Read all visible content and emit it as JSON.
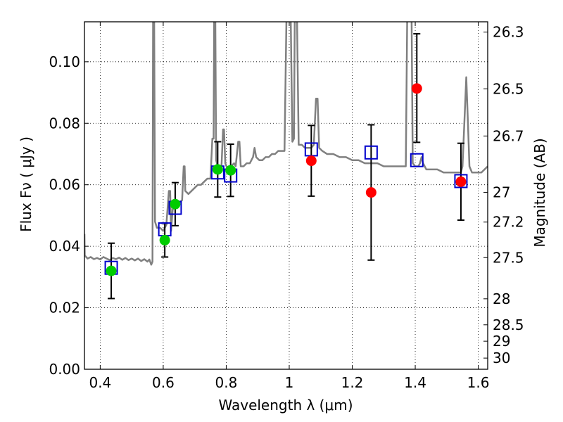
{
  "chart_data": {
    "type": "scatter",
    "title": "",
    "xlabel": "Wavelength  λ (μm)",
    "ylabel": "Flux  Fν  ( μJy )",
    "ylabel_right": "Magnitude (AB)",
    "xlim": [
      0.35,
      1.63
    ],
    "ylim": [
      0.0,
      0.113
    ],
    "grid": true,
    "x_ticks": [
      {
        "value": 0.4,
        "label": "0.4"
      },
      {
        "value": 0.6,
        "label": "0.6"
      },
      {
        "value": 0.8,
        "label": "0.8"
      },
      {
        "value": 1.0,
        "label": "1"
      },
      {
        "value": 1.2,
        "label": "1.2"
      },
      {
        "value": 1.4,
        "label": "1.4"
      },
      {
        "value": 1.6,
        "label": "1.6"
      }
    ],
    "y_ticks": [
      {
        "value": 0.0,
        "label": "0.00"
      },
      {
        "value": 0.02,
        "label": "0.02"
      },
      {
        "value": 0.04,
        "label": "0.04"
      },
      {
        "value": 0.06,
        "label": "0.06"
      },
      {
        "value": 0.08,
        "label": "0.08"
      },
      {
        "value": 0.1,
        "label": "0.10"
      }
    ],
    "right_ticks": [
      {
        "value": 26.3,
        "label": "26.3"
      },
      {
        "value": 26.5,
        "label": "26.5"
      },
      {
        "value": 26.7,
        "label": "26.7"
      },
      {
        "value": 27.0,
        "label": "27"
      },
      {
        "value": 27.2,
        "label": "27.2"
      },
      {
        "value": 27.5,
        "label": "27.5"
      },
      {
        "value": 28.0,
        "label": "28"
      },
      {
        "value": 28.5,
        "label": "28.5"
      },
      {
        "value": 29.0,
        "label": "29"
      },
      {
        "value": 30.0,
        "label": "30"
      }
    ],
    "spectrum": {
      "color": "#808080",
      "points": [
        [
          0.35,
          0.044
        ],
        [
          0.351,
          0.037
        ],
        [
          0.36,
          0.036
        ],
        [
          0.37,
          0.0365
        ],
        [
          0.38,
          0.0358
        ],
        [
          0.39,
          0.0362
        ],
        [
          0.4,
          0.0357
        ],
        [
          0.41,
          0.0365
        ],
        [
          0.42,
          0.036
        ],
        [
          0.43,
          0.0355
        ],
        [
          0.44,
          0.0362
        ],
        [
          0.45,
          0.0358
        ],
        [
          0.46,
          0.0363
        ],
        [
          0.47,
          0.0356
        ],
        [
          0.48,
          0.0362
        ],
        [
          0.49,
          0.0355
        ],
        [
          0.5,
          0.036
        ],
        [
          0.51,
          0.0354
        ],
        [
          0.52,
          0.036
        ],
        [
          0.53,
          0.0352
        ],
        [
          0.54,
          0.0358
        ],
        [
          0.55,
          0.035
        ],
        [
          0.556,
          0.0357
        ],
        [
          0.562,
          0.034
        ],
        [
          0.566,
          0.035
        ],
        [
          0.568,
          0.12
        ],
        [
          0.571,
          0.12
        ],
        [
          0.574,
          0.048
        ],
        [
          0.58,
          0.046
        ],
        [
          0.59,
          0.046
        ],
        [
          0.6,
          0.045
        ],
        [
          0.61,
          0.047
        ],
        [
          0.618,
          0.058
        ],
        [
          0.622,
          0.058
        ],
        [
          0.625,
          0.045
        ],
        [
          0.63,
          0.052
        ],
        [
          0.64,
          0.053
        ],
        [
          0.65,
          0.054
        ],
        [
          0.66,
          0.055
        ],
        [
          0.665,
          0.066
        ],
        [
          0.668,
          0.066
        ],
        [
          0.67,
          0.058
        ],
        [
          0.68,
          0.057
        ],
        [
          0.69,
          0.058
        ],
        [
          0.7,
          0.059
        ],
        [
          0.71,
          0.06
        ],
        [
          0.72,
          0.06
        ],
        [
          0.73,
          0.061
        ],
        [
          0.74,
          0.062
        ],
        [
          0.75,
          0.062
        ],
        [
          0.756,
          0.075
        ],
        [
          0.76,
          0.075
        ],
        [
          0.762,
          0.12
        ],
        [
          0.765,
          0.12
        ],
        [
          0.768,
          0.068
        ],
        [
          0.775,
          0.065
        ],
        [
          0.785,
          0.066
        ],
        [
          0.79,
          0.078
        ],
        [
          0.793,
          0.078
        ],
        [
          0.797,
          0.067
        ],
        [
          0.805,
          0.065
        ],
        [
          0.815,
          0.066
        ],
        [
          0.825,
          0.067
        ],
        [
          0.83,
          0.066
        ],
        [
          0.838,
          0.074
        ],
        [
          0.842,
          0.074
        ],
        [
          0.846,
          0.066
        ],
        [
          0.855,
          0.066
        ],
        [
          0.865,
          0.067
        ],
        [
          0.875,
          0.067
        ],
        [
          0.885,
          0.069
        ],
        [
          0.89,
          0.072
        ],
        [
          0.895,
          0.069
        ],
        [
          0.905,
          0.068
        ],
        [
          0.915,
          0.068
        ],
        [
          0.925,
          0.069
        ],
        [
          0.935,
          0.069
        ],
        [
          0.945,
          0.07
        ],
        [
          0.955,
          0.07
        ],
        [
          0.965,
          0.071
        ],
        [
          0.975,
          0.071
        ],
        [
          0.985,
          0.071
        ],
        [
          0.992,
          0.12
        ],
        [
          1.004,
          0.12
        ],
        [
          1.01,
          0.074
        ],
        [
          1.015,
          0.075
        ],
        [
          1.018,
          0.12
        ],
        [
          1.024,
          0.12
        ],
        [
          1.03,
          0.073
        ],
        [
          1.04,
          0.073
        ],
        [
          1.05,
          0.072
        ],
        [
          1.06,
          0.072
        ],
        [
          1.07,
          0.072
        ],
        [
          1.078,
          0.073
        ],
        [
          1.085,
          0.088
        ],
        [
          1.09,
          0.088
        ],
        [
          1.095,
          0.072
        ],
        [
          1.105,
          0.071
        ],
        [
          1.12,
          0.07
        ],
        [
          1.14,
          0.07
        ],
        [
          1.16,
          0.069
        ],
        [
          1.18,
          0.069
        ],
        [
          1.2,
          0.068
        ],
        [
          1.22,
          0.068
        ],
        [
          1.24,
          0.067
        ],
        [
          1.26,
          0.067
        ],
        [
          1.28,
          0.067
        ],
        [
          1.3,
          0.066
        ],
        [
          1.32,
          0.066
        ],
        [
          1.34,
          0.066
        ],
        [
          1.36,
          0.066
        ],
        [
          1.37,
          0.066
        ],
        [
          1.375,
          0.12
        ],
        [
          1.388,
          0.12
        ],
        [
          1.392,
          0.067
        ],
        [
          1.4,
          0.066
        ],
        [
          1.41,
          0.066
        ],
        [
          1.415,
          0.067
        ],
        [
          1.42,
          0.069
        ],
        [
          1.425,
          0.067
        ],
        [
          1.435,
          0.065
        ],
        [
          1.45,
          0.065
        ],
        [
          1.47,
          0.065
        ],
        [
          1.49,
          0.064
        ],
        [
          1.51,
          0.064
        ],
        [
          1.53,
          0.064
        ],
        [
          1.545,
          0.064
        ],
        [
          1.55,
          0.066
        ],
        [
          1.555,
          0.078
        ],
        [
          1.562,
          0.095
        ],
        [
          1.568,
          0.078
        ],
        [
          1.572,
          0.066
        ],
        [
          1.58,
          0.064
        ],
        [
          1.595,
          0.064
        ],
        [
          1.61,
          0.064
        ],
        [
          1.62,
          0.065
        ],
        [
          1.63,
          0.066
        ]
      ]
    },
    "model_photometry": {
      "marker": "open-square",
      "color": "#0000cc",
      "x": [
        0.435,
        0.605,
        0.638,
        0.773,
        0.814,
        1.07,
        1.26,
        1.405,
        1.545
      ],
      "y": [
        0.033,
        0.0455,
        0.0525,
        0.064,
        0.063,
        0.0715,
        0.0705,
        0.068,
        0.0612
      ]
    },
    "observed_optical": {
      "marker": "filled-circle",
      "color": "#00cc00",
      "x": [
        0.435,
        0.605,
        0.638,
        0.773,
        0.814
      ],
      "y": [
        0.032,
        0.042,
        0.0537,
        0.065,
        0.0647
      ],
      "yerr_low": [
        0.009,
        0.0055,
        0.007,
        0.009,
        0.0085
      ],
      "yerr_high": [
        0.009,
        0.0055,
        0.007,
        0.009,
        0.0085
      ]
    },
    "observed_nir": {
      "marker": "filled-circle",
      "color": "#ff0000",
      "x": [
        1.07,
        1.26,
        1.405,
        1.545
      ],
      "y": [
        0.0678,
        0.0575,
        0.0913,
        0.061
      ],
      "yerr_low": [
        0.0115,
        0.022,
        0.0175,
        0.0125
      ],
      "yerr_high": [
        0.0115,
        0.022,
        0.0178,
        0.0125
      ]
    },
    "errorbar_color": "#000000"
  }
}
